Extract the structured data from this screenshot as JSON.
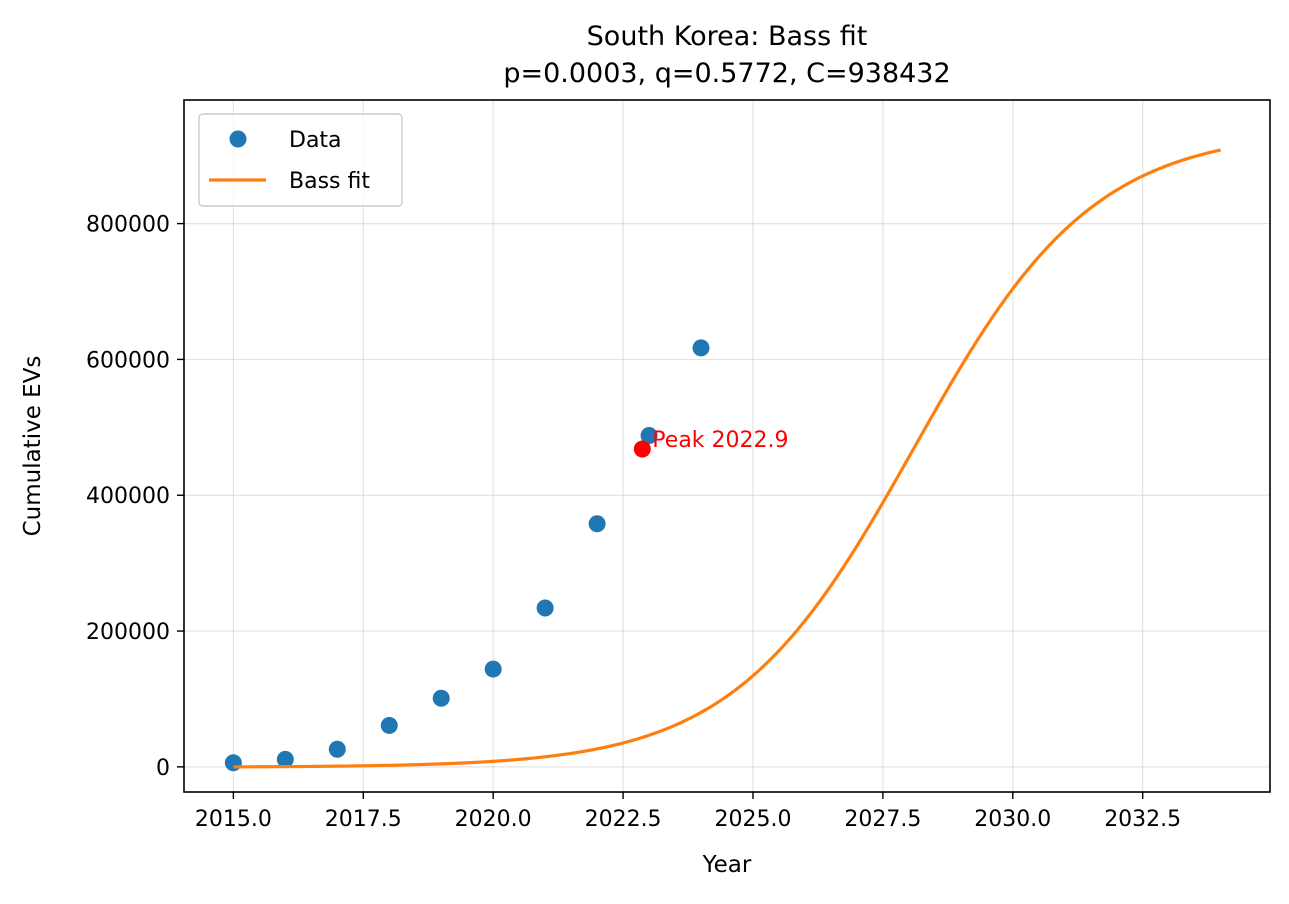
{
  "chart_data": {
    "type": "scatter",
    "title": "South Korea: Bass fit",
    "subtitle": "p=0.0003, q=0.5772, C=938432",
    "xlabel": "Year",
    "ylabel": "Cumulative EVs",
    "xlim": [
      2014.05,
      2034.95
    ],
    "ylim": [
      -37000,
      982000
    ],
    "x_ticks": [
      2015.0,
      2017.5,
      2020.0,
      2022.5,
      2025.0,
      2027.5,
      2030.0,
      2032.5
    ],
    "x_tick_labels": [
      "2015.0",
      "2017.5",
      "2020.0",
      "2022.5",
      "2025.0",
      "2027.5",
      "2030.0",
      "2032.5"
    ],
    "y_ticks": [
      0,
      200000,
      400000,
      600000,
      800000
    ],
    "y_tick_labels": [
      "0",
      "200000",
      "400000",
      "600000",
      "800000"
    ],
    "grid": true,
    "legend_position": "top-left",
    "series": [
      {
        "name": "Data",
        "kind": "scatter",
        "color": "#1f77b4",
        "x": [
          2015,
          2016,
          2017,
          2018,
          2019,
          2020,
          2021,
          2022,
          2023,
          2024
        ],
        "y": [
          6000,
          11000,
          26000,
          61000,
          101000,
          144000,
          234000,
          358000,
          488000,
          617000
        ]
      },
      {
        "name": "Bass fit",
        "kind": "line",
        "color": "#ff7f0e",
        "model": {
          "p": 0.0003,
          "q": 0.5772,
          "C": 938432,
          "t0": 2015
        },
        "x_range": [
          2015,
          2034
        ]
      }
    ],
    "annotations": [
      {
        "text": "Peak 2022.9",
        "x": 2022.87,
        "y": 468000,
        "color": "#ff0000"
      }
    ]
  }
}
